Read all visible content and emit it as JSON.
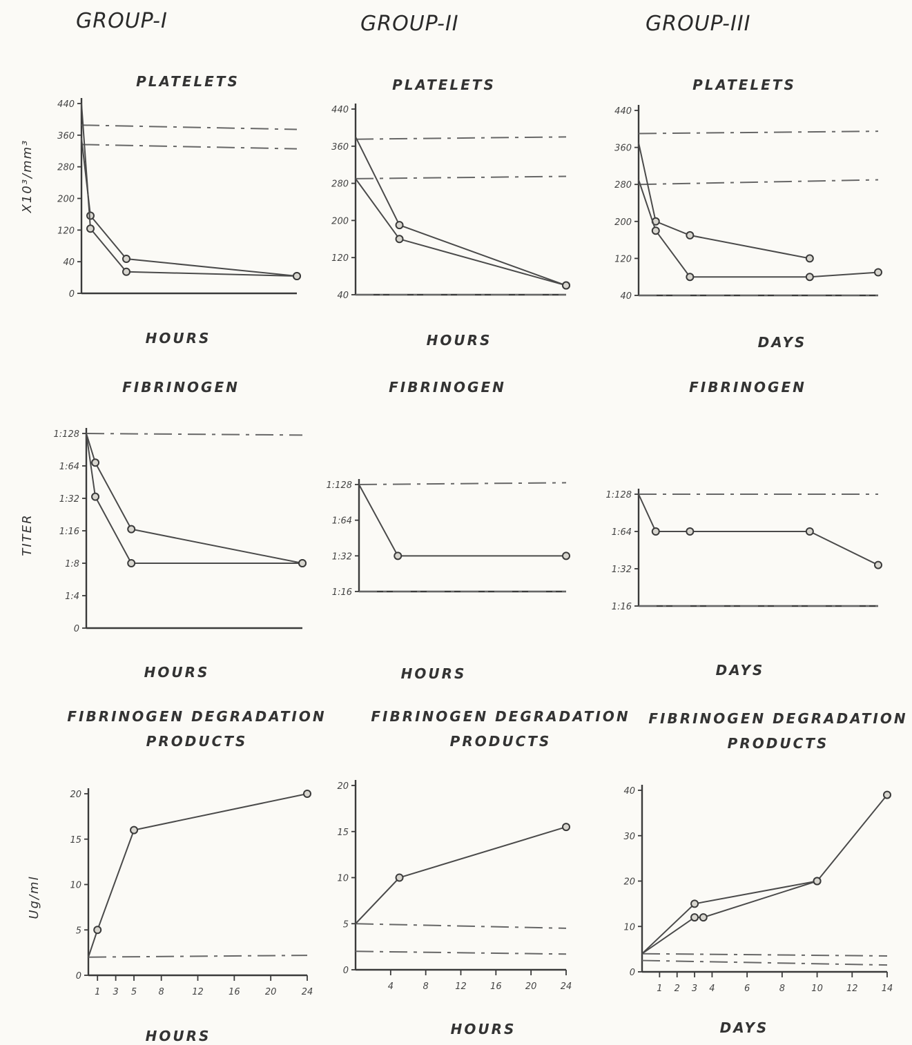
{
  "groups": [
    {
      "title": "GROUP-I"
    },
    {
      "title": "GROUP-II"
    },
    {
      "title": "GROUP-III"
    }
  ],
  "colors": {
    "ink": "#3a3a3a",
    "paper": "#fbfaf6",
    "reference": "#666666"
  },
  "chart_data": [
    {
      "type": "line",
      "title": "PLATELETS",
      "xlabel": "HOURS",
      "ylabel": "X10³/mm³",
      "yticks": [
        "0",
        "40",
        "120",
        "200",
        "280",
        "360",
        "440"
      ],
      "xticks": [],
      "ylim": [
        0,
        440
      ],
      "xlim": [
        0,
        24
      ],
      "series": [
        {
          "x": [
            0,
            1,
            5,
            24
          ],
          "values": [
            360,
            180,
            80,
            40
          ]
        },
        {
          "x": [
            0,
            1,
            5,
            24
          ],
          "values": [
            440,
            150,
            50,
            40
          ]
        }
      ],
      "reference_lines": [
        {
          "values": [
            390,
            380
          ]
        },
        {
          "values": [
            345,
            335
          ]
        }
      ]
    },
    {
      "type": "line",
      "title": "PLATELETS",
      "xlabel": "HOURS",
      "yticks": [
        "40",
        "120",
        "200",
        "280",
        "360",
        "440"
      ],
      "xticks": [],
      "ylim": [
        40,
        440
      ],
      "xlim": [
        0,
        24
      ],
      "series": [
        {
          "x": [
            0,
            5,
            24
          ],
          "values": [
            380,
            190,
            60
          ]
        },
        {
          "x": [
            0,
            5,
            24
          ],
          "values": [
            290,
            160,
            60
          ]
        }
      ],
      "reference_lines": [
        {
          "values": [
            375,
            380
          ]
        },
        {
          "values": [
            290,
            295
          ]
        },
        {
          "values": [
            40,
            40
          ]
        }
      ]
    },
    {
      "type": "line",
      "title": "PLATELETS",
      "xlabel": "DAYS",
      "yticks": [
        "40",
        "120",
        "200",
        "280",
        "360",
        "440"
      ],
      "xticks": [],
      "ylim": [
        40,
        440
      ],
      "xlim": [
        0,
        14
      ],
      "series": [
        {
          "x": [
            0,
            1,
            3,
            10
          ],
          "values": [
            370,
            200,
            170,
            120
          ]
        },
        {
          "x": [
            0,
            1,
            3,
            10,
            14
          ],
          "values": [
            290,
            180,
            80,
            80,
            90
          ]
        }
      ],
      "reference_lines": [
        {
          "values": [
            390,
            395
          ]
        },
        {
          "values": [
            280,
            290
          ]
        },
        {
          "values": [
            40,
            40
          ]
        }
      ]
    },
    {
      "type": "line",
      "title": "FIBRINOGEN",
      "xlabel": "HOURS",
      "ylabel": "TITER",
      "yticks": [
        "0",
        "1:4",
        "1:8",
        "1:16",
        "1:32",
        "1:64",
        "1:128"
      ],
      "xticks": [],
      "ylim": [
        0,
        6
      ],
      "xlim": [
        0,
        24
      ],
      "series": [
        {
          "x": [
            0,
            1,
            5,
            24
          ],
          "values": [
            6,
            5.1,
            3.05,
            2
          ]
        },
        {
          "x": [
            0,
            1,
            5,
            24
          ],
          "values": [
            6,
            4.05,
            2,
            2
          ]
        }
      ],
      "reference_lines": [
        {
          "values": [
            6,
            5.95
          ]
        }
      ]
    },
    {
      "type": "line",
      "title": "FIBRINOGEN",
      "xlabel": "HOURS",
      "yticks": [
        "1:16",
        "1:32",
        "1:64",
        "1:128"
      ],
      "xticks": [],
      "ylim": [
        0,
        3
      ],
      "xlim": [
        0,
        24
      ],
      "series": [
        {
          "x": [
            0,
            4.5,
            24
          ],
          "values": [
            3,
            1,
            1
          ]
        }
      ],
      "reference_lines": [
        {
          "values": [
            3,
            3.05
          ]
        },
        {
          "values": [
            0,
            0
          ]
        }
      ]
    },
    {
      "type": "line",
      "title": "FIBRINOGEN",
      "xlabel": "DAYS",
      "yticks": [
        "1:16",
        "1:32",
        "1:64",
        "1:128"
      ],
      "xticks": [],
      "ylim": [
        0,
        3
      ],
      "xlim": [
        0,
        14
      ],
      "series": [
        {
          "x": [
            0,
            1,
            3,
            10,
            14
          ],
          "values": [
            3,
            2,
            2,
            2,
            1.1
          ]
        }
      ],
      "reference_lines": [
        {
          "values": [
            3,
            3
          ]
        },
        {
          "values": [
            0,
            0
          ]
        }
      ]
    },
    {
      "type": "line",
      "title": "FIBRINOGEN DEGRADATION PRODUCTS",
      "xlabel": "HOURS",
      "ylabel": "Ug/ml",
      "yticks": [
        "0",
        "5",
        "10",
        "15",
        "20"
      ],
      "xticks": [
        "1",
        "3",
        "5",
        "8",
        "12",
        "16",
        "20",
        "24"
      ],
      "ylim": [
        0,
        20
      ],
      "xlim": [
        0,
        24
      ],
      "series": [
        {
          "x": [
            0,
            1,
            5,
            24
          ],
          "values": [
            2,
            5,
            16,
            20
          ]
        }
      ],
      "reference_lines": [
        {
          "values": [
            2,
            2.2
          ]
        }
      ]
    },
    {
      "type": "line",
      "title": "FIBRINOGEN DEGRADATION PRODUCTS",
      "xlabel": "HOURS",
      "yticks": [
        "0",
        "5",
        "10",
        "15",
        "20"
      ],
      "xticks": [
        "4",
        "8",
        "12",
        "16",
        "20",
        "24"
      ],
      "ylim": [
        0,
        20
      ],
      "xlim": [
        0,
        24
      ],
      "series": [
        {
          "x": [
            0,
            5,
            24
          ],
          "values": [
            5,
            10,
            15.5
          ]
        }
      ],
      "reference_lines": [
        {
          "values": [
            5,
            4.5
          ]
        },
        {
          "values": [
            2,
            1.7
          ]
        }
      ]
    },
    {
      "type": "line",
      "title": "FIBRINOGEN DEGRADATION PRODUCTS",
      "xlabel": "DAYS",
      "yticks": [
        "0",
        "10",
        "20",
        "30",
        "40"
      ],
      "xticks": [
        "1",
        "2",
        "3",
        "4",
        "6",
        "8",
        "10",
        "12",
        "14"
      ],
      "ylim": [
        0,
        40
      ],
      "xlim": [
        0,
        14
      ],
      "series": [
        {
          "x": [
            0,
            3,
            10,
            14
          ],
          "values": [
            4,
            15,
            20,
            39
          ]
        },
        {
          "x": [
            0,
            3,
            3.5,
            10
          ],
          "values": [
            4,
            12,
            12,
            20
          ]
        }
      ],
      "reference_lines": [
        {
          "values": [
            4,
            3.5
          ]
        },
        {
          "values": [
            2.5,
            1.5
          ]
        }
      ]
    }
  ]
}
